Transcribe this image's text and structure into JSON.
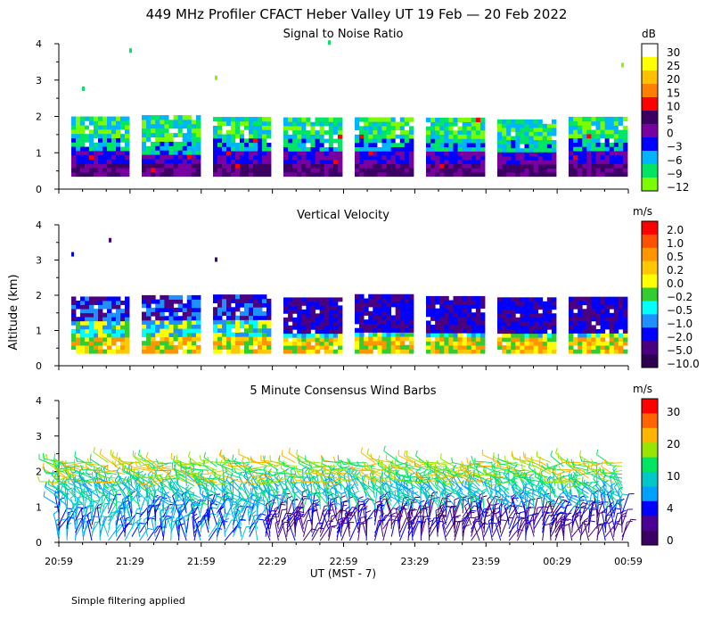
{
  "title": "449 MHz Profiler CFACT Heber Valley UT 19 Feb — 20 Feb 2022",
  "ylabel": "Altitude (km)",
  "xlabel": "UT  (MST - 7)",
  "footer": "Simple filtering applied",
  "chart_data": [
    {
      "type": "heatmap",
      "id": "snr",
      "title": "Signal to Noise Ratio",
      "unit": "dB",
      "ylim": [
        0,
        4
      ],
      "yticks": [
        0,
        1,
        2,
        3,
        4
      ],
      "x_ticks": [
        "20:59",
        "21:29",
        "21:59",
        "22:29",
        "22:59",
        "23:29",
        "23:59",
        "00:29",
        "00:59"
      ],
      "colorbar": {
        "labels": [
          "30",
          "25",
          "20",
          "15",
          "10",
          "5",
          "0",
          "−3",
          "−6",
          "−9",
          "−12"
        ],
        "colors": [
          "#ffffff",
          "#ffff00",
          "#ffc000",
          "#ff8000",
          "#ff0000",
          "#3c0064",
          "#7800a0",
          "#0000ff",
          "#00b4ff",
          "#00e664",
          "#7cfc00"
        ]
      },
      "data_blocks": 8,
      "data_altitude_range_km": [
        0.4,
        2.0
      ]
    },
    {
      "type": "heatmap",
      "id": "vv",
      "title": "Vertical Velocity",
      "unit": "m/s",
      "ylim": [
        0,
        4
      ],
      "yticks": [
        0,
        1,
        2,
        3,
        4
      ],
      "x_ticks": [
        "20:59",
        "21:29",
        "21:59",
        "22:29",
        "22:59",
        "23:29",
        "23:59",
        "00:29",
        "00:59"
      ],
      "colorbar": {
        "labels": [
          "2.0",
          "1.0",
          "0.5",
          "0.2",
          "0.0",
          "−0.2",
          "−0.5",
          "−1.0",
          "−2.0",
          "−5.0",
          "−10.0"
        ],
        "colors": [
          "#ff0000",
          "#ff5000",
          "#ff9600",
          "#ffc800",
          "#ffff00",
          "#32cd32",
          "#00ffff",
          "#1e90ff",
          "#0000ff",
          "#4b0082",
          "#2d0050"
        ]
      },
      "data_blocks": 8,
      "data_altitude_range_km": [
        0.4,
        2.0
      ]
    },
    {
      "type": "scatter",
      "id": "wind",
      "title": "5 Minute Consensus Wind Barbs",
      "unit": "m/s",
      "ylim": [
        0,
        4
      ],
      "yticks": [
        0,
        1,
        2,
        3,
        4
      ],
      "x_ticks": [
        "20:59",
        "21:29",
        "21:59",
        "22:29",
        "22:59",
        "23:29",
        "23:59",
        "00:29",
        "00:59"
      ],
      "colorbar": {
        "labels": [
          "30",
          "20",
          "10",
          "4",
          "0"
        ],
        "colors": [
          "#ff0000",
          "#ff6400",
          "#ffb400",
          "#96e600",
          "#00e664",
          "#00c8c8",
          "#00a0ff",
          "#0000ff",
          "#4b0096",
          "#3c0064"
        ]
      },
      "data_altitude_range_km": [
        0.0,
        2.4
      ]
    }
  ]
}
